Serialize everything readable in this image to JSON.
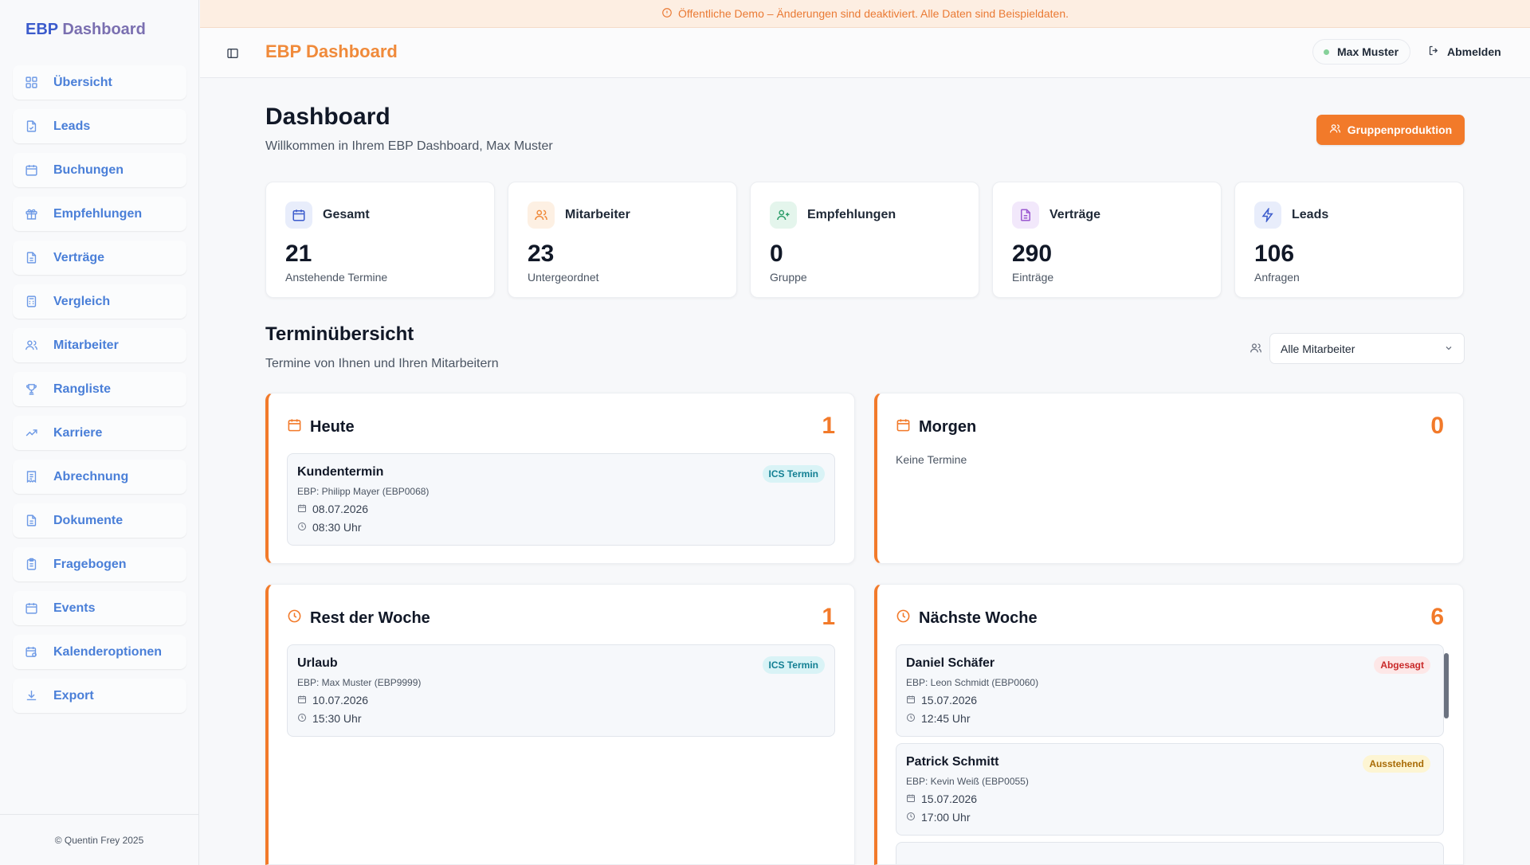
{
  "sidebar": {
    "brand_part1": "EBP",
    "brand_part2": "Dashboard",
    "items": [
      {
        "label": "Übersicht",
        "icon": "grid-icon"
      },
      {
        "label": "Leads",
        "icon": "file-icon"
      },
      {
        "label": "Buchungen",
        "icon": "calendar-icon"
      },
      {
        "label": "Empfehlungen",
        "icon": "gift-icon"
      },
      {
        "label": "Verträge",
        "icon": "document-icon"
      },
      {
        "label": "Vergleich",
        "icon": "calculator-icon"
      },
      {
        "label": "Mitarbeiter",
        "icon": "users-icon"
      },
      {
        "label": "Rangliste",
        "icon": "trophy-icon"
      },
      {
        "label": "Karriere",
        "icon": "trending-up-icon"
      },
      {
        "label": "Abrechnung",
        "icon": "receipt-icon"
      },
      {
        "label": "Dokumente",
        "icon": "document-icon"
      },
      {
        "label": "Fragebogen",
        "icon": "clipboard-icon"
      },
      {
        "label": "Events",
        "icon": "calendar-icon"
      },
      {
        "label": "Kalenderoptionen",
        "icon": "calendar-settings-icon"
      },
      {
        "label": "Export",
        "icon": "download-icon"
      }
    ],
    "footer": "© Quentin Frey 2025"
  },
  "banner": {
    "text": "Öffentliche Demo – Änderungen sind deaktiviert. Alle Daten sind Beispieldaten."
  },
  "header": {
    "title": "EBP Dashboard",
    "user": "Max Muster",
    "logout": "Abmelden"
  },
  "page": {
    "title": "Dashboard",
    "subtitle": "Willkommen in Ihrem EBP Dashboard, Max Muster",
    "group_button": "Gruppenproduktion"
  },
  "stats": [
    {
      "label": "Gesamt",
      "value": "21",
      "sub": "Anstehende Termine",
      "icon": "calendar-icon",
      "color": "#3b5bcc",
      "bg": "#e8edfb"
    },
    {
      "label": "Mitarbeiter",
      "value": "23",
      "sub": "Untergeordnet",
      "icon": "users-icon",
      "color": "#f08a3a",
      "bg": "#fdf0e3"
    },
    {
      "label": "Empfehlungen",
      "value": "0",
      "sub": "Gruppe",
      "icon": "user-plus-icon",
      "color": "#2f9e6b",
      "bg": "#e4f5ec"
    },
    {
      "label": "Verträge",
      "value": "290",
      "sub": "Einträge",
      "icon": "document-icon",
      "color": "#9b59d0",
      "bg": "#f2e8fb"
    },
    {
      "label": "Leads",
      "value": "106",
      "sub": "Anfragen",
      "icon": "zap-icon",
      "color": "#3b5bcc",
      "bg": "#e8edfb"
    }
  ],
  "section": {
    "title": "Terminübersicht",
    "subtitle": "Termine von Ihnen und Ihren Mitarbeitern",
    "filter_value": "Alle Mitarbeiter"
  },
  "panels": {
    "today": {
      "title": "Heute",
      "count": "1",
      "items": [
        {
          "name": "Kundentermin",
          "ebp": "EBP: Philipp Mayer (EBP0068)",
          "date": "08.07.2026",
          "time": "08:30 Uhr",
          "badge": "ICS Termin"
        }
      ]
    },
    "tomorrow": {
      "title": "Morgen",
      "count": "0",
      "empty": "Keine Termine"
    },
    "rest_week": {
      "title": "Rest der Woche",
      "count": "1",
      "items": [
        {
          "name": "Urlaub",
          "ebp": "EBP: Max Muster (EBP9999)",
          "date": "10.07.2026",
          "time": "15:30 Uhr",
          "badge": "ICS Termin"
        }
      ]
    },
    "next_week": {
      "title": "Nächste Woche",
      "count": "6",
      "items": [
        {
          "name": "Daniel Schäfer",
          "ebp": "EBP: Leon Schmidt (EBP0060)",
          "date": "15.07.2026",
          "time": "12:45 Uhr",
          "badge": "Abgesagt"
        },
        {
          "name": "Patrick Schmitt",
          "ebp": "EBP: Kevin Weiß (EBP0055)",
          "date": "15.07.2026",
          "time": "17:00 Uhr",
          "badge": "Ausstehend"
        }
      ]
    }
  }
}
